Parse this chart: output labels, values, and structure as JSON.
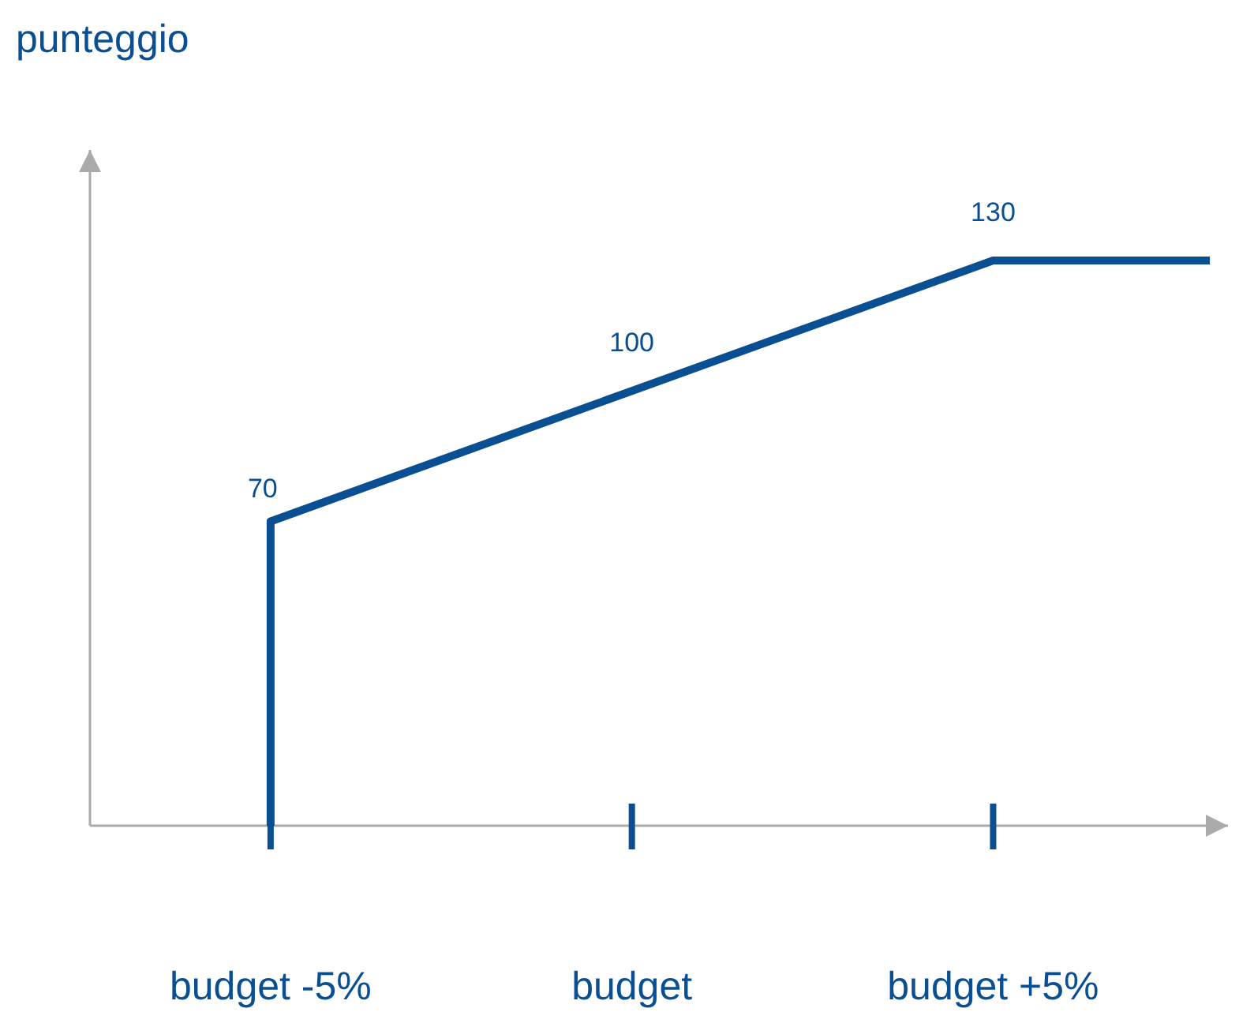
{
  "chart_data": {
    "type": "line",
    "annotations": [
      "punteggio"
    ],
    "series": [
      {
        "color": "#0b4f93",
        "x": [
          -5,
          -5,
          0,
          5,
          8
        ],
        "values": [
          0,
          70,
          100,
          130,
          130
        ],
        "value_labels": [
          null,
          "70",
          "100",
          "130",
          null
        ]
      }
    ],
    "xlim": [
      -7.5,
      8.25
    ],
    "xticks": [
      {
        "value": -5,
        "label": "budget -5%"
      },
      {
        "value": 0,
        "label": "budget"
      },
      {
        "value": 5,
        "label": "budget +5%"
      }
    ],
    "tick_labels": "x",
    "marker": "none",
    "line_style": "solid"
  }
}
